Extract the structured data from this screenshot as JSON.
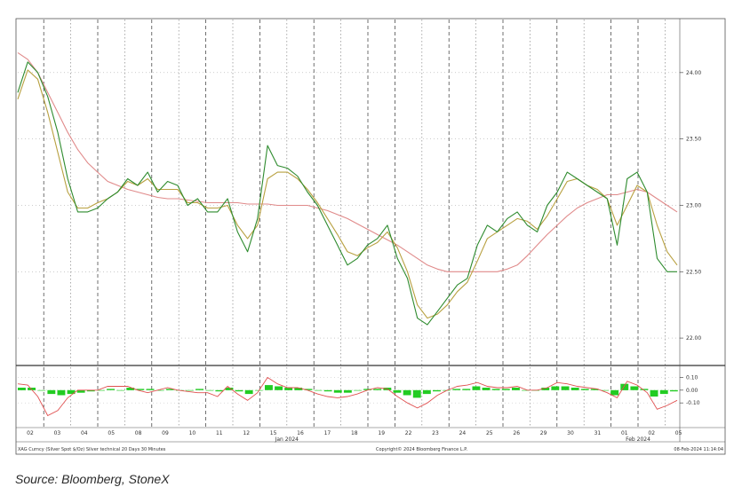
{
  "source": "Source: Bloomberg, StoneX",
  "footer": {
    "left": "XAG Curncy (Silver Spot $/Oz) Silver technical 20 Days 30 Minutes",
    "center": "Copyright© 2024 Bloomberg Finance L.P.",
    "right": "08-Feb-2024 11:14:04"
  },
  "chart_data": [
    {
      "type": "line",
      "panel": "price",
      "ylim": [
        21.8,
        24.4
      ],
      "yticks": [
        "24.00",
        "23.50",
        "23.00",
        "22.50",
        "22.00"
      ],
      "x_labels": [
        "02",
        "03",
        "04",
        "05",
        "08",
        "09",
        "10",
        "11",
        "12",
        "15",
        "16",
        "17",
        "18",
        "19",
        "22",
        "23",
        "24",
        "25",
        "26",
        "29",
        "30",
        "31",
        "01",
        "02",
        "05"
      ],
      "month_labels": [
        {
          "text": "Jan 2024",
          "after_index": 9
        },
        {
          "text": "Feb 2024",
          "after_index": 22
        }
      ],
      "dashed_after_index": [
        0,
        2,
        4,
        6,
        8,
        10,
        12,
        13,
        15,
        17,
        19,
        21,
        22
      ],
      "dotted_after_index": [
        1,
        3,
        5,
        7,
        9,
        11,
        14,
        16,
        18,
        20,
        23
      ],
      "series": [
        {
          "color": "#2e8b2e",
          "values": [
            23.85,
            24.08,
            24.0,
            23.82,
            23.55,
            23.2,
            22.95,
            22.95,
            22.98,
            23.05,
            23.1,
            23.2,
            23.15,
            23.25,
            23.1,
            23.18,
            23.15,
            23.0,
            23.05,
            22.95,
            22.95,
            23.05,
            22.8,
            22.65,
            22.9,
            23.45,
            23.3,
            23.28,
            23.22,
            23.1,
            23.0,
            22.85,
            22.7,
            22.55,
            22.6,
            22.7,
            22.75,
            22.85,
            22.6,
            22.45,
            22.15,
            22.1,
            22.2,
            22.3,
            22.4,
            22.45,
            22.7,
            22.85,
            22.8,
            22.9,
            22.95,
            22.85,
            22.8,
            23.0,
            23.1,
            23.25,
            23.2,
            23.15,
            23.1,
            23.05,
            22.7,
            23.2,
            23.25,
            23.1,
            22.6,
            22.5,
            22.5
          ]
        },
        {
          "color": "#b8a040",
          "values": [
            23.8,
            24.02,
            23.95,
            23.7,
            23.4,
            23.1,
            22.98,
            22.98,
            23.02,
            23.05,
            23.1,
            23.18,
            23.15,
            23.2,
            23.12,
            23.12,
            23.12,
            23.02,
            23.02,
            22.98,
            22.98,
            23.0,
            22.85,
            22.75,
            22.85,
            23.2,
            23.25,
            23.25,
            23.2,
            23.12,
            23.02,
            22.9,
            22.78,
            22.65,
            22.62,
            22.68,
            22.72,
            22.8,
            22.68,
            22.5,
            22.25,
            22.15,
            22.18,
            22.25,
            22.35,
            22.42,
            22.58,
            22.75,
            22.8,
            22.85,
            22.9,
            22.88,
            22.82,
            22.92,
            23.05,
            23.18,
            23.2,
            23.15,
            23.12,
            23.05,
            22.85,
            23.0,
            23.15,
            23.1,
            22.85,
            22.65,
            22.55
          ]
        },
        {
          "color": "#e08a8a",
          "values": [
            24.15,
            24.1,
            24.0,
            23.85,
            23.7,
            23.55,
            23.42,
            23.32,
            23.25,
            23.18,
            23.15,
            23.12,
            23.1,
            23.08,
            23.06,
            23.05,
            23.05,
            23.04,
            23.03,
            23.02,
            23.02,
            23.02,
            23.02,
            23.01,
            23.01,
            23.01,
            23.0,
            23.0,
            23.0,
            23.0,
            22.98,
            22.96,
            22.93,
            22.9,
            22.86,
            22.82,
            22.78,
            22.74,
            22.7,
            22.65,
            22.6,
            22.55,
            22.52,
            22.5,
            22.5,
            22.5,
            22.5,
            22.5,
            22.5,
            22.52,
            22.55,
            22.62,
            22.7,
            22.78,
            22.85,
            22.92,
            22.98,
            23.02,
            23.05,
            23.08,
            23.08,
            23.1,
            23.12,
            23.1,
            23.05,
            23.0,
            22.95
          ]
        }
      ]
    },
    {
      "type": "bar",
      "panel": "oscillator",
      "ylim": [
        -0.28,
        0.18
      ],
      "yticks": [
        "0.10",
        "0.00",
        "-0.10"
      ],
      "bar_color": "#22cc22",
      "line_color": "#e05050",
      "values": [
        0.02,
        0.02,
        0.0,
        -0.03,
        -0.04,
        -0.03,
        -0.02,
        -0.01,
        0.0,
        0.01,
        0.0,
        0.02,
        0.01,
        0.01,
        0.0,
        0.01,
        0.0,
        0.0,
        0.01,
        0.0,
        -0.01,
        0.02,
        -0.01,
        -0.03,
        0.0,
        0.04,
        0.03,
        0.02,
        0.02,
        0.01,
        0.0,
        -0.01,
        -0.02,
        -0.02,
        0.0,
        0.01,
        0.01,
        0.02,
        -0.02,
        -0.04,
        -0.06,
        -0.03,
        -0.01,
        0.0,
        0.01,
        0.01,
        0.03,
        0.02,
        0.01,
        0.01,
        0.02,
        0.0,
        0.0,
        0.02,
        0.03,
        0.03,
        0.02,
        0.01,
        0.01,
        0.0,
        -0.04,
        0.05,
        0.03,
        0.01,
        -0.05,
        -0.03,
        -0.01
      ],
      "line_values": [
        0.05,
        0.04,
        -0.05,
        -0.2,
        -0.16,
        -0.06,
        0.0,
        0.0,
        0.0,
        0.03,
        0.03,
        0.03,
        0.0,
        -0.02,
        0.0,
        0.02,
        0.0,
        -0.01,
        -0.02,
        -0.02,
        -0.05,
        0.03,
        -0.03,
        -0.08,
        -0.02,
        0.1,
        0.05,
        0.02,
        0.02,
        0.0,
        -0.03,
        -0.05,
        -0.06,
        -0.05,
        -0.03,
        0.0,
        0.02,
        0.01,
        -0.05,
        -0.1,
        -0.14,
        -0.1,
        -0.04,
        0.0,
        0.03,
        0.04,
        0.06,
        0.03,
        0.02,
        0.02,
        0.03,
        0.0,
        0.0,
        0.02,
        0.06,
        0.05,
        0.03,
        0.02,
        0.01,
        -0.02,
        -0.06,
        0.07,
        0.04,
        -0.02,
        -0.15,
        -0.12,
        -0.08
      ]
    }
  ]
}
